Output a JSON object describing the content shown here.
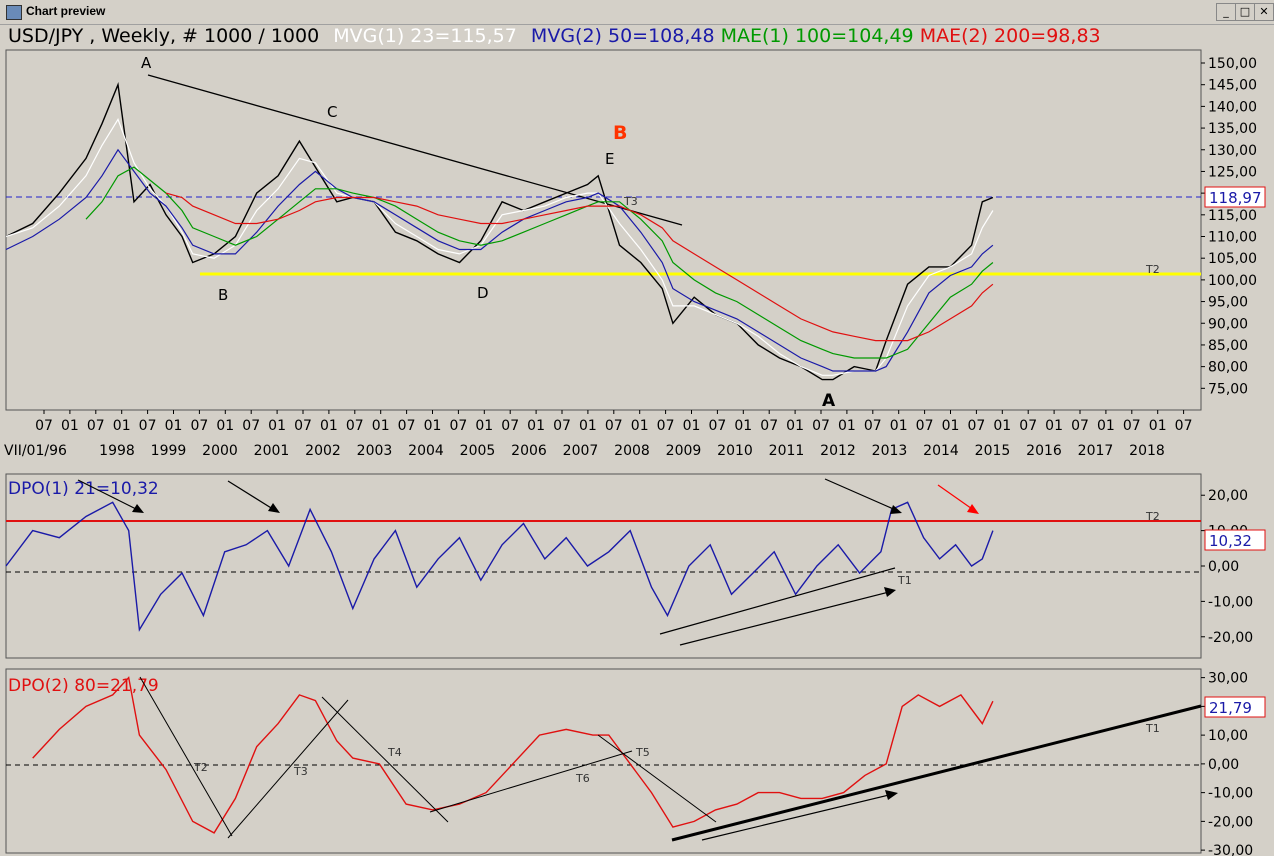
{
  "window": {
    "title": "Chart preview",
    "buttons": [
      "_",
      "□",
      "✕"
    ]
  },
  "colors": {
    "bg": "#d4d0c8",
    "price": "#000000",
    "mvg1": "#ffffff",
    "mvg2": "#1a1aa8",
    "mae1": "#009900",
    "mae2": "#e01010",
    "yellow": "#ffff00",
    "dpo1": "#1a1aa8",
    "dpo2": "#e01010"
  },
  "panel1": {
    "header": {
      "symbol": "USD/JPY , Weekly, # 1000 / 1000",
      "mvg1": "MVG(1) 23=115,57",
      "mvg2": "MVG(2) 50=108,48",
      "mae1": "MAE(1) 100=104,49",
      "mae2": "MAE(2) 200=98,83"
    },
    "last_price": "118,97",
    "wave_labels": [
      "A",
      "B",
      "C",
      "D",
      "E",
      "B",
      "A",
      "T2",
      "T3"
    ]
  },
  "panel2": {
    "title": "DPO(1) 21=10,32",
    "last": "10,32",
    "labels": [
      "T2",
      "T1"
    ]
  },
  "panel3": {
    "title": "DPO(2) 80=21,79",
    "last": "21,79",
    "labels": [
      "T1",
      "T2",
      "T3",
      "T4",
      "T5",
      "T6"
    ]
  },
  "x_axis": {
    "start": "VII/01/96",
    "months": [
      "07",
      "01",
      "07",
      "01",
      "07",
      "01",
      "07",
      "01",
      "07",
      "01",
      "07",
      "01",
      "07",
      "01",
      "07",
      "01",
      "07",
      "01",
      "07",
      "01",
      "07",
      "01",
      "07",
      "01",
      "07",
      "01",
      "07",
      "01",
      "07",
      "01",
      "07",
      "01",
      "07",
      "01",
      "07",
      "01",
      "07",
      "01",
      "07",
      "01",
      "07",
      "01",
      "07",
      "01",
      "07"
    ],
    "years": [
      "1998",
      "1999",
      "2000",
      "2001",
      "2002",
      "2003",
      "2004",
      "2005",
      "2006",
      "2007",
      "2008",
      "2009",
      "2010",
      "2011",
      "2012",
      "2013",
      "2014",
      "2015",
      "2016",
      "2017",
      "2018"
    ]
  },
  "chart_data": [
    {
      "type": "line",
      "title": "USD/JPY , Weekly, # 1000 / 1000",
      "ylim": [
        70,
        153
      ],
      "yticks": [
        "150,00",
        "145,00",
        "140,00",
        "135,00",
        "130,00",
        "125,00",
        "120,00",
        "115,00",
        "110,00",
        "105,00",
        "100,00",
        "95,00",
        "90,00",
        "85,00",
        "80,00",
        "75,00"
      ],
      "x": [
        1996.5,
        1997.0,
        1997.5,
        1998.0,
        1998.3,
        1998.6,
        1998.9,
        1999.2,
        1999.5,
        1999.8,
        2000.0,
        2000.4,
        2000.8,
        2001.2,
        2001.6,
        2002.0,
        2002.3,
        2002.7,
        2003.0,
        2003.4,
        2003.8,
        2004.2,
        2004.6,
        2005.0,
        2005.4,
        2005.8,
        2006.2,
        2006.6,
        2007.0,
        2007.4,
        2007.6,
        2008.0,
        2008.4,
        2008.8,
        2009.0,
        2009.4,
        2009.8,
        2010.2,
        2010.6,
        2011.0,
        2011.4,
        2011.8,
        2012.0,
        2012.4,
        2012.8,
        2013.0,
        2013.4,
        2013.8,
        2014.2,
        2014.6,
        2014.8,
        2015.0
      ],
      "series": [
        {
          "name": "USD/JPY",
          "values": [
            110,
            113,
            120,
            128,
            136,
            145,
            118,
            122,
            115,
            110,
            104,
            106,
            110,
            120,
            124,
            132,
            126,
            118,
            119,
            118,
            111,
            109,
            106,
            104,
            109,
            118,
            116,
            118,
            120,
            122,
            124,
            108,
            104,
            98,
            90,
            96,
            92,
            90,
            85,
            82,
            80,
            77,
            77,
            80,
            79,
            86,
            99,
            103,
            103,
            108,
            118,
            119
          ]
        },
        {
          "name": "MVG(1) 23",
          "values": [
            110,
            112,
            117,
            124,
            131,
            137,
            127,
            121,
            117,
            111,
            106,
            105,
            108,
            116,
            121,
            128,
            127,
            120,
            119,
            118,
            113,
            110,
            107,
            106,
            108,
            115,
            116,
            117,
            119,
            120,
            120,
            113,
            107,
            100,
            94,
            94,
            92,
            90,
            87,
            83,
            80,
            78,
            78,
            79,
            79,
            82,
            94,
            101,
            103,
            106,
            112,
            116
          ]
        },
        {
          "name": "MVG(2) 50",
          "values": [
            107,
            110,
            114,
            119,
            124,
            130,
            125,
            120,
            117,
            112,
            108,
            106,
            106,
            111,
            117,
            122,
            125,
            121,
            119,
            118,
            115,
            112,
            109,
            107,
            107,
            111,
            114,
            116,
            118,
            119,
            120,
            117,
            111,
            104,
            98,
            95,
            93,
            91,
            88,
            85,
            82,
            80,
            79,
            79,
            79,
            80,
            88,
            97,
            101,
            103,
            106,
            108
          ]
        },
        {
          "name": "MAE(1) 100",
          "values": [
            null,
            null,
            null,
            114,
            118,
            124,
            126,
            123,
            120,
            116,
            112,
            110,
            108,
            110,
            114,
            118,
            121,
            121,
            120,
            119,
            117,
            114,
            111,
            109,
            108,
            109,
            111,
            113,
            115,
            117,
            118,
            118,
            114,
            109,
            104,
            100,
            97,
            95,
            92,
            89,
            86,
            84,
            83,
            82,
            82,
            82,
            84,
            90,
            96,
            99,
            102,
            104
          ]
        },
        {
          "name": "MAE(2) 200",
          "values": [
            null,
            null,
            null,
            null,
            null,
            null,
            null,
            null,
            120,
            119,
            117,
            115,
            113,
            113,
            114,
            116,
            118,
            119,
            119,
            119,
            118,
            117,
            115,
            114,
            113,
            113,
            114,
            115,
            116,
            117,
            117,
            117,
            115,
            112,
            109,
            106,
            103,
            100,
            97,
            94,
            91,
            89,
            88,
            87,
            86,
            86,
            86,
            88,
            91,
            94,
            97,
            99
          ]
        }
      ]
    },
    {
      "type": "line",
      "title": "DPO(1) 21=10,32",
      "ylim": [
        -26,
        26
      ],
      "yticks": [
        "20,00",
        "10,00",
        "0,00",
        "-10,00",
        "-20,00"
      ],
      "x": [
        1996.5,
        1997.0,
        1997.5,
        1998.0,
        1998.5,
        1998.8,
        1999.0,
        1999.4,
        1999.8,
        2000.2,
        2000.6,
        2001.0,
        2001.4,
        2001.8,
        2002.2,
        2002.6,
        2003.0,
        2003.4,
        2003.8,
        2004.2,
        2004.6,
        2005.0,
        2005.4,
        2005.8,
        2006.2,
        2006.6,
        2007.0,
        2007.4,
        2007.8,
        2008.2,
        2008.6,
        2008.9,
        2009.3,
        2009.7,
        2010.1,
        2010.5,
        2010.9,
        2011.3,
        2011.7,
        2012.1,
        2012.5,
        2012.9,
        2013.1,
        2013.4,
        2013.7,
        2014.0,
        2014.3,
        2014.6,
        2014.8,
        2015.0
      ],
      "series": [
        {
          "name": "DPO(1) 21",
          "values": [
            0,
            10,
            8,
            14,
            18,
            10,
            -18,
            -8,
            -2,
            -14,
            4,
            6,
            10,
            0,
            16,
            4,
            -12,
            2,
            10,
            -6,
            2,
            8,
            -4,
            6,
            12,
            2,
            8,
            0,
            4,
            10,
            -6,
            -14,
            0,
            6,
            -8,
            -2,
            4,
            -8,
            0,
            6,
            -2,
            4,
            16,
            18,
            8,
            2,
            6,
            0,
            2,
            10
          ]
        }
      ]
    },
    {
      "type": "line",
      "title": "DPO(2) 80=21,79",
      "ylim": [
        -31,
        33
      ],
      "yticks": [
        "30,00",
        "20,00",
        "10,00",
        "0,00",
        "-10,00",
        "-20,00",
        "-30,00"
      ],
      "x": [
        1997.0,
        1997.5,
        1998.0,
        1998.5,
        1998.8,
        1999.0,
        1999.5,
        2000.0,
        2000.4,
        2000.8,
        2001.2,
        2001.6,
        2002.0,
        2002.3,
        2002.7,
        2003.0,
        2003.5,
        2004.0,
        2004.5,
        2005.0,
        2005.5,
        2006.0,
        2006.5,
        2007.0,
        2007.5,
        2007.8,
        2008.2,
        2008.6,
        2009.0,
        2009.4,
        2009.8,
        2010.2,
        2010.6,
        2011.0,
        2011.4,
        2011.8,
        2012.2,
        2012.6,
        2013.0,
        2013.3,
        2013.6,
        2014.0,
        2014.4,
        2014.8,
        2015.0
      ],
      "series": [
        {
          "name": "DPO(2) 80",
          "values": [
            2,
            12,
            20,
            24,
            30,
            10,
            -2,
            -20,
            -24,
            -12,
            6,
            14,
            24,
            22,
            8,
            2,
            0,
            -14,
            -16,
            -14,
            -10,
            0,
            10,
            12,
            10,
            10,
            0,
            -10,
            -22,
            -20,
            -16,
            -14,
            -10,
            -10,
            -12,
            -12,
            -10,
            -4,
            0,
            20,
            24,
            20,
            24,
            14,
            21.79
          ]
        }
      ]
    }
  ]
}
